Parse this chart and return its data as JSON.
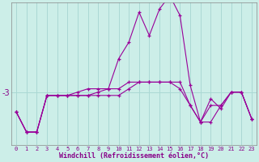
{
  "xlabel": "Windchill (Refroidissement éolien,°C)",
  "background_color": "#cceee8",
  "grid_color": "#aad8d4",
  "line_color": "#990099",
  "hours": [
    0,
    1,
    2,
    3,
    4,
    5,
    6,
    7,
    8,
    9,
    10,
    11,
    12,
    13,
    14,
    15,
    16,
    17,
    18,
    19,
    20,
    21,
    22,
    23
  ],
  "line1": [
    -3.6,
    -4.2,
    -4.2,
    -3.1,
    -3.1,
    -3.1,
    -3.1,
    -3.1,
    -3.0,
    -2.9,
    -2.0,
    -1.5,
    -0.6,
    -1.3,
    -0.5,
    -0.1,
    -0.7,
    -2.8,
    -3.9,
    -3.2,
    -3.5,
    -3.0,
    -3.0,
    -3.8
  ],
  "line2": [
    -3.6,
    -4.2,
    -4.2,
    -3.1,
    -3.1,
    -3.1,
    -3.0,
    -2.9,
    -2.9,
    -2.9,
    -2.9,
    -2.7,
    -2.7,
    -2.7,
    -2.7,
    -2.7,
    -2.9,
    -3.4,
    -3.9,
    -3.4,
    -3.4,
    -3.0,
    -3.0,
    -3.8
  ],
  "line3": [
    -3.6,
    -4.2,
    -4.2,
    -3.1,
    -3.1,
    -3.1,
    -3.1,
    -3.1,
    -3.1,
    -3.1,
    -3.1,
    -2.9,
    -2.7,
    -2.7,
    -2.7,
    -2.7,
    -2.7,
    -3.4,
    -3.9,
    -3.9,
    -3.4,
    -3.0,
    -3.0,
    -3.8
  ],
  "ylim": [
    -4.6,
    -0.3
  ],
  "ytick_val": -3,
  "ytick_label": "-3"
}
